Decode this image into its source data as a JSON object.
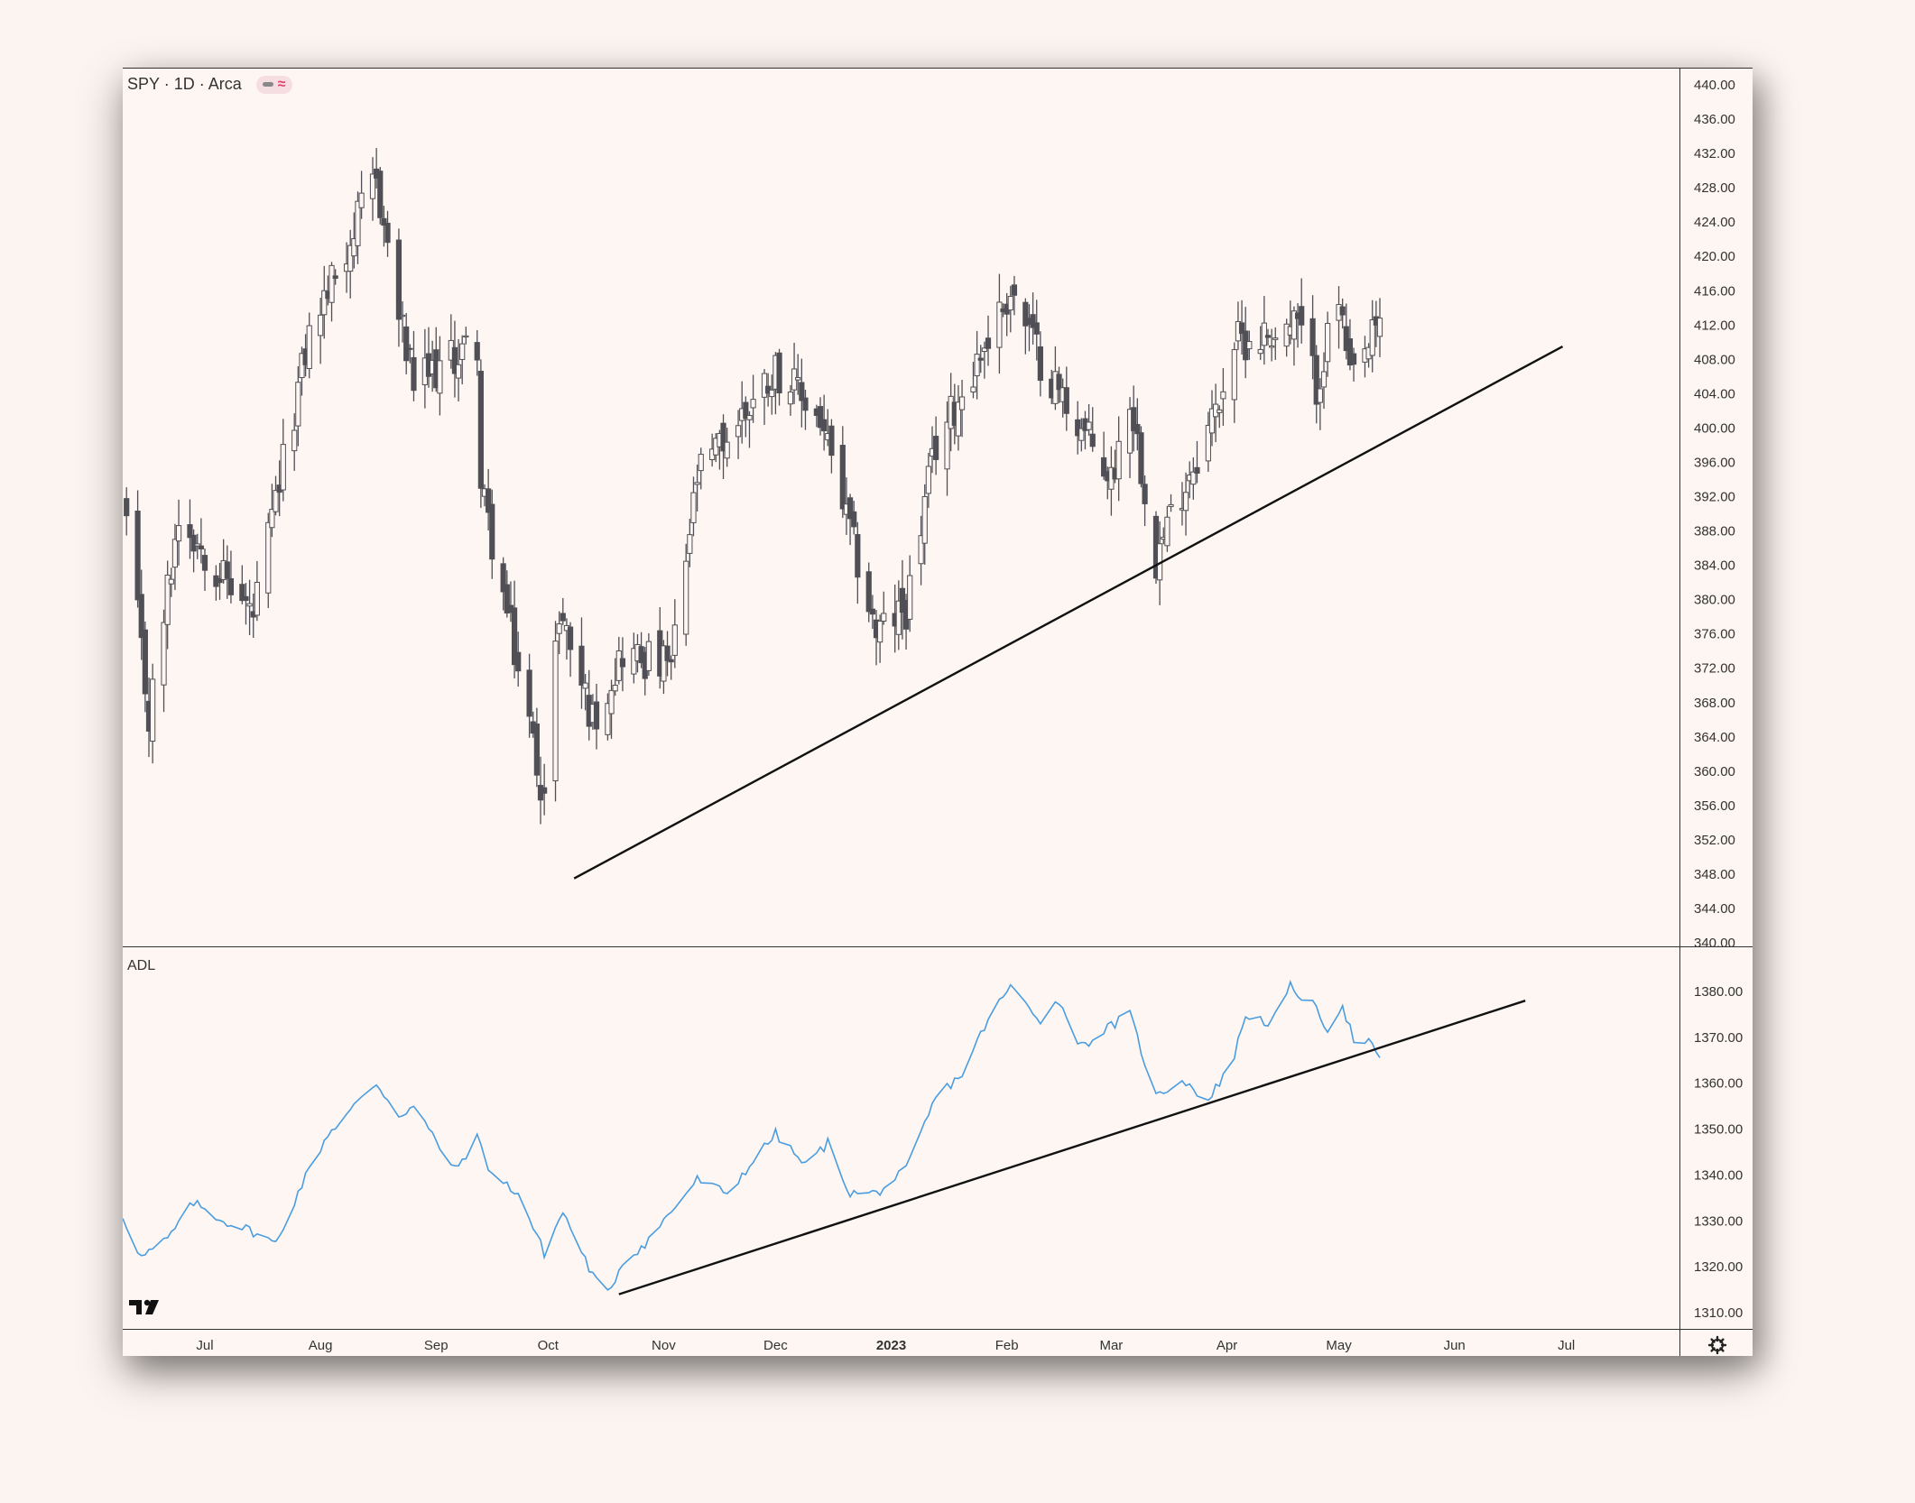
{
  "legend": {
    "symbol_text": "SPY · 1D · Arca",
    "indicator_name": "ADL"
  },
  "icons": {
    "legend_badge": "line-and-wave-icon",
    "logo": "tradingview-logo",
    "settings": "gear-icon"
  },
  "colors": {
    "background": "#fdf6f2",
    "candle_up_fill": "#fdf6f2",
    "candle_body": "#4f4f55",
    "adl_line": "#4a9de0",
    "trendline": "#111111"
  },
  "chart_data": [
    {
      "type": "candlestick",
      "title": "SPY · 1D · Arca",
      "ylim": [
        340,
        442
      ],
      "yticks": [
        340,
        344,
        348,
        352,
        356,
        360,
        364,
        368,
        372,
        376,
        380,
        384,
        388,
        392,
        396,
        400,
        404,
        408,
        412,
        416,
        420,
        424,
        428,
        432,
        436,
        440
      ],
      "ytick_labels": [
        "340.00",
        "344.00",
        "348.00",
        "352.00",
        "356.00",
        "360.00",
        "364.00",
        "368.00",
        "372.00",
        "376.00",
        "380.00",
        "384.00",
        "388.00",
        "392.00",
        "396.00",
        "400.00",
        "404.00",
        "408.00",
        "412.00",
        "416.00",
        "420.00",
        "424.00",
        "428.00",
        "432.00",
        "436.00",
        "440.00"
      ],
      "xtick_labels": [
        "Jul",
        "Aug",
        "Sep",
        "Oct",
        "Nov",
        "Dec",
        "2023",
        "Feb",
        "Mar",
        "Apr",
        "May",
        "Jun",
        "Jul"
      ],
      "xtick_dates": [
        "2022-07-01",
        "2022-08-01",
        "2022-09-01",
        "2022-10-01",
        "2022-11-01",
        "2022-12-01",
        "2023-01-01",
        "2023-02-01",
        "2023-03-01",
        "2023-04-01",
        "2023-05-01",
        "2023-06-01",
        "2023-07-01"
      ],
      "keypoints": [
        {
          "date": "2022-06-10",
          "close": 389
        },
        {
          "date": "2022-06-16",
          "close": 366
        },
        {
          "date": "2022-06-24",
          "close": 390
        },
        {
          "date": "2022-07-14",
          "close": 378
        },
        {
          "date": "2022-07-29",
          "close": 411
        },
        {
          "date": "2022-08-16",
          "close": 429
        },
        {
          "date": "2022-08-22",
          "close": 413
        },
        {
          "date": "2022-08-26",
          "close": 405
        },
        {
          "date": "2022-09-12",
          "close": 410
        },
        {
          "date": "2022-09-13",
          "close": 393
        },
        {
          "date": "2022-09-30",
          "close": 357
        },
        {
          "date": "2022-10-04",
          "close": 379
        },
        {
          "date": "2022-10-13",
          "close": 366
        },
        {
          "date": "2022-10-21",
          "close": 374
        },
        {
          "date": "2022-11-03",
          "close": 372
        },
        {
          "date": "2022-11-10",
          "close": 394
        },
        {
          "date": "2022-12-01",
          "close": 407
        },
        {
          "date": "2022-12-13",
          "close": 401
        },
        {
          "date": "2022-12-28",
          "close": 376
        },
        {
          "date": "2023-01-05",
          "close": 379
        },
        {
          "date": "2023-01-13",
          "close": 398
        },
        {
          "date": "2023-02-02",
          "close": 416
        },
        {
          "date": "2023-02-10",
          "close": 408
        },
        {
          "date": "2023-02-21",
          "close": 400
        },
        {
          "date": "2023-03-01",
          "close": 394
        },
        {
          "date": "2023-03-06",
          "close": 404
        },
        {
          "date": "2023-03-13",
          "close": 385
        },
        {
          "date": "2023-03-20",
          "close": 393
        },
        {
          "date": "2023-03-29",
          "close": 402
        },
        {
          "date": "2023-04-03",
          "close": 410
        },
        {
          "date": "2023-04-20",
          "close": 412
        },
        {
          "date": "2023-04-25",
          "close": 405
        },
        {
          "date": "2023-05-01",
          "close": 415
        },
        {
          "date": "2023-05-04",
          "close": 405
        },
        {
          "date": "2023-05-12",
          "close": 412
        }
      ],
      "trendline": {
        "start": {
          "date": "2022-10-08",
          "value": 347.5
        },
        "end": {
          "date": "2023-06-30",
          "value": 409.5
        }
      }
    },
    {
      "type": "line",
      "series": [
        {
          "name": "ADL"
        }
      ],
      "ylim": [
        1307,
        1389
      ],
      "yticks": [
        1310,
        1320,
        1330,
        1340,
        1350,
        1360,
        1370,
        1380
      ],
      "ytick_labels": [
        "1310.00",
        "1320.00",
        "1330.00",
        "1340.00",
        "1350.00",
        "1360.00",
        "1370.00",
        "1380.00"
      ],
      "keypoints": [
        {
          "date": "2022-06-09",
          "value": 1331
        },
        {
          "date": "2022-06-14",
          "value": 1322
        },
        {
          "date": "2022-06-21",
          "value": 1326
        },
        {
          "date": "2022-06-28",
          "value": 1334
        },
        {
          "date": "2022-07-06",
          "value": 1330
        },
        {
          "date": "2022-07-13",
          "value": 1328
        },
        {
          "date": "2022-07-20",
          "value": 1325
        },
        {
          "date": "2022-07-27",
          "value": 1338
        },
        {
          "date": "2022-08-03",
          "value": 1349
        },
        {
          "date": "2022-08-16",
          "value": 1360
        },
        {
          "date": "2022-08-22",
          "value": 1353
        },
        {
          "date": "2022-08-26",
          "value": 1355
        },
        {
          "date": "2022-09-06",
          "value": 1341
        },
        {
          "date": "2022-09-12",
          "value": 1348
        },
        {
          "date": "2022-09-16",
          "value": 1340
        },
        {
          "date": "2022-09-23",
          "value": 1336
        },
        {
          "date": "2022-09-30",
          "value": 1323
        },
        {
          "date": "2022-10-05",
          "value": 1332
        },
        {
          "date": "2022-10-13",
          "value": 1318
        },
        {
          "date": "2022-10-17",
          "value": 1314
        },
        {
          "date": "2022-10-21",
          "value": 1321
        },
        {
          "date": "2022-10-27",
          "value": 1325
        },
        {
          "date": "2022-11-04",
          "value": 1333
        },
        {
          "date": "2022-11-10",
          "value": 1339
        },
        {
          "date": "2022-11-18",
          "value": 1336
        },
        {
          "date": "2022-11-25",
          "value": 1343
        },
        {
          "date": "2022-12-01",
          "value": 1349
        },
        {
          "date": "2022-12-09",
          "value": 1342
        },
        {
          "date": "2022-12-15",
          "value": 1347
        },
        {
          "date": "2022-12-21",
          "value": 1336
        },
        {
          "date": "2022-12-28",
          "value": 1336
        },
        {
          "date": "2023-01-05",
          "value": 1341
        },
        {
          "date": "2023-01-13",
          "value": 1357
        },
        {
          "date": "2023-01-20",
          "value": 1362
        },
        {
          "date": "2023-01-27",
          "value": 1374
        },
        {
          "date": "2023-02-02",
          "value": 1381
        },
        {
          "date": "2023-02-10",
          "value": 1374
        },
        {
          "date": "2023-02-15",
          "value": 1378
        },
        {
          "date": "2023-02-21",
          "value": 1368
        },
        {
          "date": "2023-02-28",
          "value": 1372
        },
        {
          "date": "2023-03-06",
          "value": 1375
        },
        {
          "date": "2023-03-13",
          "value": 1357
        },
        {
          "date": "2023-03-20",
          "value": 1361
        },
        {
          "date": "2023-03-27",
          "value": 1356
        },
        {
          "date": "2023-04-03",
          "value": 1366
        },
        {
          "date": "2023-04-06",
          "value": 1375
        },
        {
          "date": "2023-04-13",
          "value": 1373
        },
        {
          "date": "2023-04-18",
          "value": 1381
        },
        {
          "date": "2023-04-24",
          "value": 1377
        },
        {
          "date": "2023-04-28",
          "value": 1372
        },
        {
          "date": "2023-05-02",
          "value": 1377
        },
        {
          "date": "2023-05-06",
          "value": 1367
        },
        {
          "date": "2023-05-09",
          "value": 1369
        },
        {
          "date": "2023-05-12",
          "value": 1365
        }
      ],
      "trendline": {
        "start": {
          "date": "2022-10-20",
          "value": 1314
        },
        "end": {
          "date": "2023-06-20",
          "value": 1378
        }
      }
    }
  ]
}
